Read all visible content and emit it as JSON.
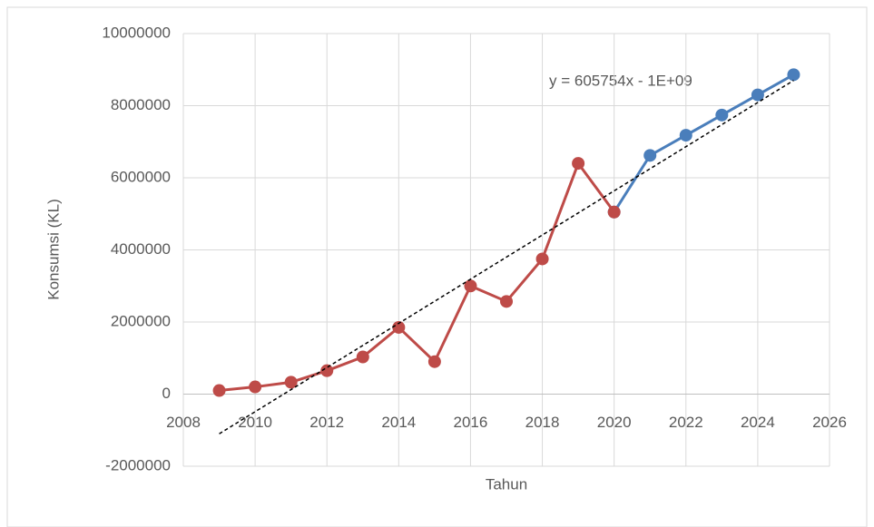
{
  "chart_data": {
    "type": "line",
    "x_label": "Tahun",
    "y_label": "Konsumsi (KL)",
    "annotation": "y = 605754x - 1E+09",
    "series": [
      {
        "color": "#4a7ebb",
        "x": [
          2020,
          2021,
          2022,
          2023,
          2024,
          2025
        ],
        "values": [
          5050000,
          6620000,
          7180000,
          7740000,
          8300000,
          8860000
        ]
      },
      {
        "color": "#be4b48",
        "x": [
          2009,
          2010,
          2011,
          2012,
          2013,
          2014,
          2015,
          2016,
          2017,
          2018,
          2019,
          2020
        ],
        "values": [
          100000,
          200000,
          330000,
          650000,
          1030000,
          1850000,
          900000,
          3000000,
          2570000,
          3750000,
          6400000,
          5050000
        ]
      }
    ],
    "trendline": {
      "color": "#000000",
      "x": [
        2009,
        2025
      ],
      "values": [
        -1100000,
        8700000
      ]
    },
    "xlim": [
      2008,
      2026
    ],
    "xticks": [
      2008,
      2010,
      2012,
      2014,
      2016,
      2018,
      2020,
      2022,
      2024,
      2026
    ],
    "ylim": [
      -2000000,
      10000000
    ],
    "yticks": [
      -2000000,
      0,
      2000000,
      4000000,
      6000000,
      8000000,
      10000000
    ],
    "grid": true
  }
}
